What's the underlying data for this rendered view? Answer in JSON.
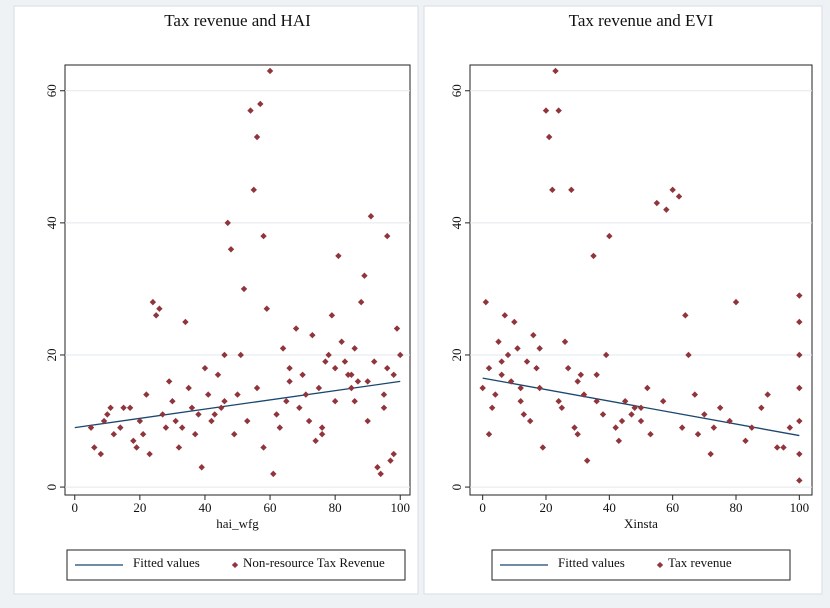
{
  "chart_data": [
    {
      "type": "scatter",
      "title": "Tax revenue and HAI",
      "x_label": "hai_wfg",
      "xlim": [
        -3,
        103
      ],
      "ylim": [
        -1.2,
        63.9
      ],
      "xticks": [
        0,
        20,
        40,
        60,
        80,
        100
      ],
      "yticks": [
        0,
        20,
        40,
        60
      ],
      "grid": true,
      "series": [
        {
          "name": "Fitted values",
          "color": "#1a476f",
          "mode": "line",
          "x": [
            0,
            100
          ],
          "values": [
            9,
            16
          ]
        },
        {
          "name": "Non-resource Tax Revenue",
          "color": "#90353b",
          "mode": "markers",
          "x": [
            5,
            8,
            10,
            12,
            15,
            18,
            20,
            22,
            25,
            28,
            30,
            32,
            35,
            38,
            40,
            42,
            45,
            48,
            50,
            52,
            55,
            58,
            60,
            62,
            65,
            68,
            70,
            72,
            75,
            78,
            80,
            82,
            85,
            88,
            90,
            92,
            95,
            98,
            100,
            6,
            9,
            14,
            17,
            21,
            24,
            27,
            31,
            34,
            37,
            41,
            44,
            47,
            51,
            54,
            56,
            57,
            59,
            63,
            66,
            69,
            73,
            76,
            79,
            83,
            86,
            89,
            91,
            93,
            94,
            96,
            97,
            99,
            87,
            84,
            81,
            11,
            19,
            23,
            29,
            33,
            39,
            43,
            46,
            49,
            53,
            58,
            61,
            64,
            71,
            74,
            77,
            80,
            85,
            90,
            95,
            98,
            26,
            36,
            46,
            56,
            66,
            76,
            86,
            96
          ],
          "values": [
            9,
            5,
            11,
            8,
            12,
            7,
            10,
            14,
            26,
            9,
            13,
            6,
            15,
            11,
            18,
            10,
            12,
            36,
            14,
            30,
            45,
            38,
            63,
            11,
            13,
            24,
            17,
            10,
            15,
            20,
            18,
            22,
            15,
            28,
            16,
            19,
            14,
            17,
            20,
            6,
            10,
            9,
            12,
            8,
            28,
            11,
            10,
            25,
            8,
            14,
            17,
            40,
            20,
            57,
            53,
            58,
            27,
            9,
            18,
            12,
            23,
            8,
            26,
            19,
            21,
            32,
            41,
            3,
            2,
            38,
            4,
            24,
            16,
            17,
            35,
            12,
            6,
            5,
            16,
            9,
            3,
            11,
            13,
            8,
            10,
            6,
            2,
            21,
            14,
            7,
            19,
            13,
            17,
            10,
            12,
            5,
            27,
            12,
            20,
            15,
            16,
            9,
            13,
            18
          ]
        }
      ]
    },
    {
      "type": "scatter",
      "title": "Tax revenue and EVI",
      "x_label": "Xinsta",
      "xlim": [
        -4,
        104
      ],
      "ylim": [
        -1.2,
        63.9
      ],
      "xticks": [
        0,
        20,
        40,
        60,
        80,
        100
      ],
      "yticks": [
        0,
        20,
        40,
        60
      ],
      "grid": true,
      "series": [
        {
          "name": "Fitted values",
          "color": "#1a476f",
          "mode": "line",
          "x": [
            0,
            100
          ],
          "values": [
            16.5,
            7.8
          ]
        },
        {
          "name": "Tax revenue",
          "color": "#90353b",
          "mode": "markers",
          "x": [
            0,
            1,
            2,
            3,
            5,
            6,
            8,
            10,
            12,
            14,
            15,
            16,
            18,
            20,
            21,
            22,
            23,
            24,
            25,
            27,
            28,
            30,
            32,
            35,
            38,
            40,
            42,
            45,
            48,
            50,
            52,
            55,
            58,
            60,
            62,
            65,
            68,
            70,
            75,
            80,
            85,
            90,
            95,
            100,
            100,
            100,
            100,
            100,
            100,
            100,
            2,
            4,
            7,
            9,
            11,
            13,
            17,
            19,
            26,
            29,
            31,
            33,
            36,
            39,
            43,
            47,
            53,
            57,
            63,
            67,
            72,
            78,
            83,
            88,
            93,
            97,
            6,
            12,
            18,
            24,
            30,
            36,
            44,
            50,
            64,
            73
          ],
          "values": [
            15,
            28,
            18,
            12,
            22,
            17,
            20,
            25,
            13,
            19,
            10,
            23,
            15,
            57,
            53,
            45,
            63,
            57,
            12,
            18,
            45,
            16,
            14,
            35,
            11,
            38,
            9,
            13,
            12,
            10,
            15,
            43,
            42,
            45,
            44,
            20,
            8,
            11,
            12,
            28,
            9,
            14,
            6,
            1,
            5,
            10,
            15,
            20,
            25,
            29,
            8,
            14,
            26,
            16,
            21,
            11,
            18,
            6,
            22,
            9,
            17,
            4,
            13,
            20,
            7,
            11,
            8,
            13,
            9,
            14,
            5,
            10,
            7,
            12,
            6,
            9,
            19,
            15,
            21,
            13,
            8,
            17,
            10,
            12,
            26,
            9
          ]
        }
      ]
    }
  ]
}
